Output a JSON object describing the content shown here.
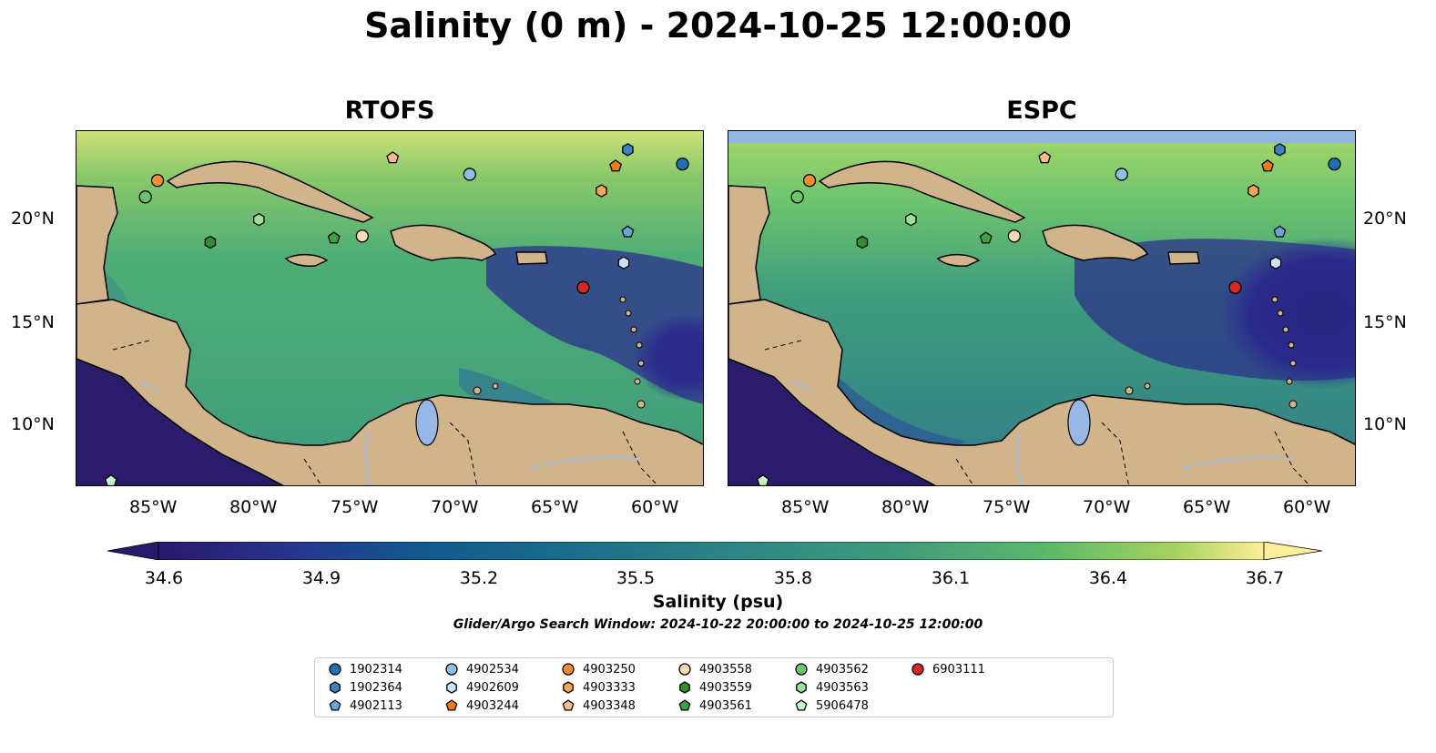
{
  "title": "Salinity (0 m) - 2024-10-25 12:00:00",
  "panels": [
    {
      "title": "RTOFS"
    },
    {
      "title": "ESPC"
    }
  ],
  "axes": {
    "lat_labels": [
      "20°N",
      "15°N",
      "10°N"
    ],
    "lon_labels": [
      "85°W",
      "80°W",
      "75°W",
      "70°W",
      "65°W",
      "60°W"
    ],
    "lon_range": [
      -89,
      -58
    ],
    "lat_range": [
      7,
      24.3
    ]
  },
  "colorbar": {
    "label": "Salinity (psu)",
    "ticks": [
      "34.6",
      "34.9",
      "35.2",
      "35.5",
      "35.8",
      "36.1",
      "36.4",
      "36.7"
    ],
    "range": [
      34.6,
      36.7
    ],
    "extend": "both",
    "colormap": "haline"
  },
  "search_window": "Glider/Argo Search Window: 2024-10-22 20:00:00 to 2024-10-25 12:00:00",
  "colors": {
    "land": "#d2b48c",
    "lakes": "#99b7e6",
    "rivers": "#a6bcd9",
    "no_data_band": "#93b5e2"
  },
  "legend": [
    {
      "id": "1902314",
      "marker": "circle",
      "color": "#1f6fb4"
    },
    {
      "id": "1902364",
      "marker": "hexagon",
      "color": "#3b82c4"
    },
    {
      "id": "4902113",
      "marker": "pentagon",
      "color": "#6aa6db"
    },
    {
      "id": "4902534",
      "marker": "circle",
      "color": "#8fc0e8"
    },
    {
      "id": "4902609",
      "marker": "hexagon",
      "color": "#cde4f5"
    },
    {
      "id": "4903244",
      "marker": "pentagon",
      "color": "#f07b12"
    },
    {
      "id": "4903250",
      "marker": "circle",
      "color": "#f58e32"
    },
    {
      "id": "4903333",
      "marker": "hexagon",
      "color": "#f8a558"
    },
    {
      "id": "4903348",
      "marker": "pentagon",
      "color": "#f9bb88"
    },
    {
      "id": "4903558",
      "marker": "circle",
      "color": "#fcd9b7"
    },
    {
      "id": "4903559",
      "marker": "hexagon",
      "color": "#2f8f2f"
    },
    {
      "id": "4903561",
      "marker": "pentagon",
      "color": "#3ea33e"
    },
    {
      "id": "4903562",
      "marker": "circle",
      "color": "#6cc46c"
    },
    {
      "id": "4903563",
      "marker": "hexagon",
      "color": "#9edf9e"
    },
    {
      "id": "5906478",
      "marker": "pentagon",
      "color": "#c8f3c8"
    },
    {
      "id": "6903111",
      "marker": "circle",
      "color": "#d62728"
    }
  ],
  "observations": [
    {
      "id": "1902314",
      "lon": -59.1,
      "lat": 22.7
    },
    {
      "id": "1902364",
      "lon": -61.8,
      "lat": 23.4
    },
    {
      "id": "4902113",
      "lon": -61.8,
      "lat": 19.4
    },
    {
      "id": "4902534",
      "lon": -69.6,
      "lat": 22.2
    },
    {
      "id": "4902609",
      "lon": -62.0,
      "lat": 17.9
    },
    {
      "id": "4903244",
      "lon": -62.4,
      "lat": 22.6
    },
    {
      "id": "4903250",
      "lon": -85.0,
      "lat": 21.9
    },
    {
      "id": "4903333",
      "lon": -63.1,
      "lat": 21.4
    },
    {
      "id": "4903348",
      "lon": -73.4,
      "lat": 23.0
    },
    {
      "id": "4903558",
      "lon": -74.9,
      "lat": 19.2
    },
    {
      "id": "4903559",
      "lon": -82.4,
      "lat": 18.9
    },
    {
      "id": "4903561",
      "lon": -76.3,
      "lat": 19.1
    },
    {
      "id": "4903562",
      "lon": -85.6,
      "lat": 21.1
    },
    {
      "id": "4903563",
      "lon": -80.0,
      "lat": 20.0
    },
    {
      "id": "5906478",
      "lon": -87.3,
      "lat": 7.3
    },
    {
      "id": "6903111",
      "lon": -64.0,
      "lat": 16.7
    }
  ]
}
